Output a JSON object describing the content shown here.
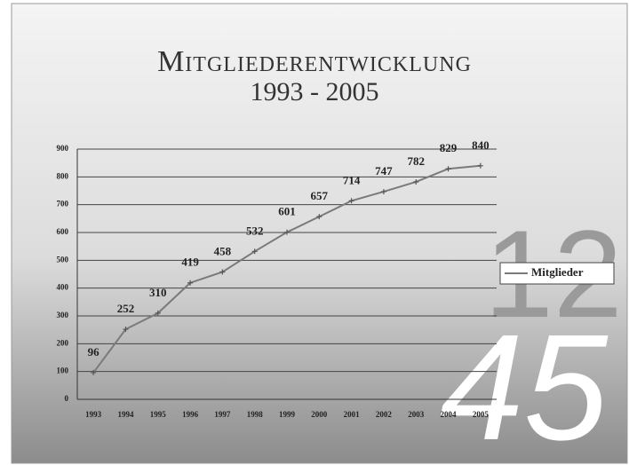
{
  "chart_data": {
    "type": "line",
    "title": "Mitgliederentwicklung",
    "subtitle": "1993 - 2005",
    "categories": [
      "1993",
      "1994",
      "1995",
      "1996",
      "1997",
      "1998",
      "1999",
      "2000",
      "2001",
      "2002",
      "2003",
      "2004",
      "2005"
    ],
    "series": [
      {
        "name": "Mitglieder",
        "color": "#7a7a7a",
        "values": [
          96,
          252,
          310,
          419,
          458,
          532,
          601,
          657,
          714,
          747,
          782,
          829,
          840
        ]
      }
    ],
    "ylim": [
      0,
      900
    ],
    "yticks": [
      0,
      100,
      200,
      300,
      400,
      500,
      600,
      700,
      800,
      900
    ],
    "grid": true,
    "legend": "right",
    "background_numbers": [
      "12",
      "45"
    ]
  }
}
